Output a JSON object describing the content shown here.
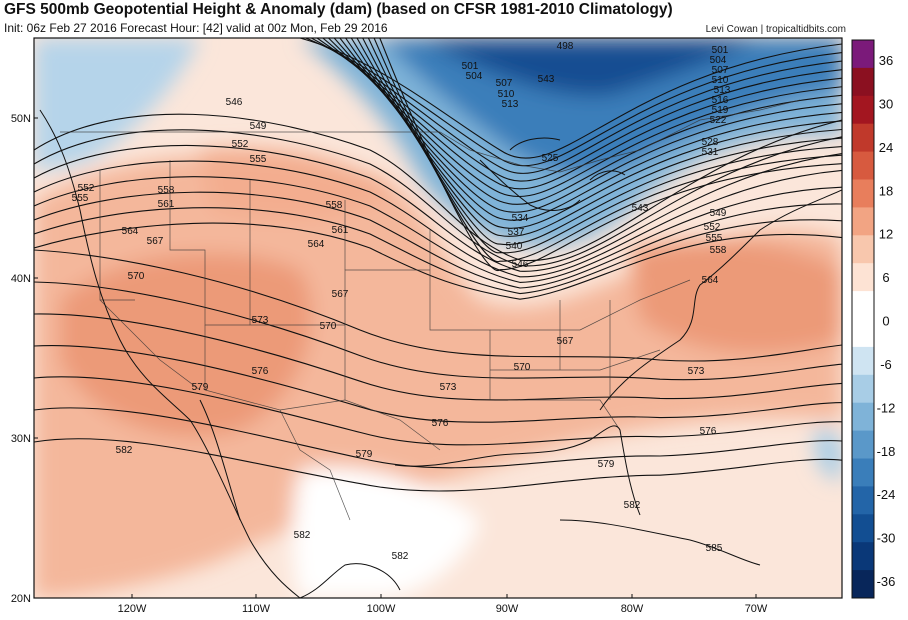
{
  "header": {
    "title": "GFS 500mb Geopotential Height & Anomaly (dam) (based on CFSR 1981-2010 Climatology)",
    "subtitle": "Init: 06z Feb 27 2016   Forecast Hour: [42]   valid at 00z Mon, Feb 29 2016",
    "credit": "Levi Cowan | tropicaltidbits.com"
  },
  "axes": {
    "lat_labels": [
      "50N",
      "40N",
      "30N",
      "20N"
    ],
    "lon_labels": [
      "120W",
      "110W",
      "100W",
      "90W",
      "80W",
      "70W"
    ]
  },
  "colorbar": {
    "ticks": [
      "36",
      "30",
      "24",
      "18",
      "12",
      "6",
      "0",
      "-6",
      "-12",
      "-18",
      "-24",
      "-30",
      "-36"
    ],
    "colors": [
      "#7b1a7a",
      "#8b1020",
      "#a31620",
      "#c0392b",
      "#d75a3f",
      "#e87e5c",
      "#f2a483",
      "#f8c7ad",
      "#fde3d4",
      "#ffffff",
      "#ffffff",
      "#cfe4f2",
      "#a8cde6",
      "#7fb3d8",
      "#5a98c9",
      "#3a7eba",
      "#2365a8",
      "#124e92",
      "#0a3878",
      "#08265a"
    ]
  },
  "contour_labels": [
    "498",
    "501",
    "504",
    "507",
    "510",
    "513",
    "516",
    "519",
    "522",
    "525",
    "528",
    "531",
    "534",
    "537",
    "540",
    "543",
    "546",
    "549",
    "552",
    "555",
    "558",
    "561",
    "564",
    "567",
    "570",
    "573",
    "576",
    "579",
    "582",
    "585"
  ]
}
